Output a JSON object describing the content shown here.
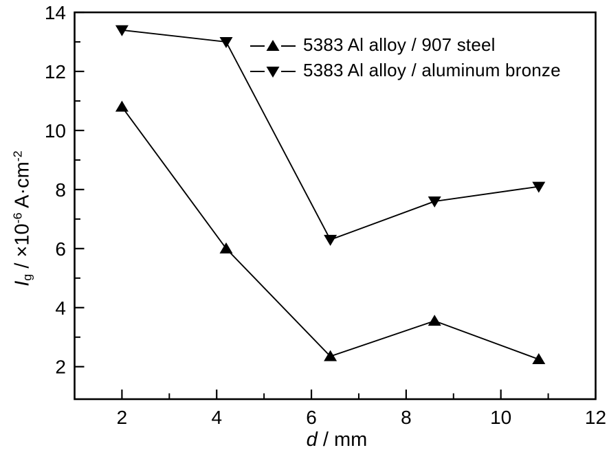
{
  "chart_data": {
    "type": "line",
    "x": [
      2,
      4.2,
      6.4,
      8.6,
      10.8
    ],
    "series": [
      {
        "name": "5383 Al alloy / 907 steel",
        "marker": "triangle-up",
        "values": [
          10.8,
          6.0,
          2.35,
          3.55,
          2.25
        ]
      },
      {
        "name": "5383 Al alloy / aluminum bronze",
        "marker": "triangle-down",
        "values": [
          13.4,
          13.0,
          6.3,
          7.6,
          8.1
        ]
      }
    ],
    "xlabel": "d / mm",
    "ylabel": "Ig / ×10-6 A·cm-2",
    "xlim": [
      1,
      12
    ],
    "ylim": [
      0.9,
      14
    ],
    "x_major_ticks": [
      2,
      4,
      6,
      8,
      10,
      12
    ],
    "x_minor_ticks": [
      3,
      5,
      7,
      9,
      11
    ],
    "y_major_ticks": [
      2,
      4,
      6,
      8,
      10,
      12,
      14
    ],
    "y_minor_ticks": [
      3,
      5,
      7,
      9,
      11,
      13
    ],
    "grid": false,
    "legend_position": "upper-right-inside",
    "line_color": "#000000",
    "background": "#ffffff"
  },
  "legend": {
    "items": [
      {
        "label": "5383 Al alloy / 907 steel",
        "marker": "triangle-up"
      },
      {
        "label": "5383 Al alloy / aluminum bronze",
        "marker": "triangle-down"
      }
    ]
  },
  "axes": {
    "x_label": {
      "italic": "d",
      "rest": " / mm"
    },
    "y_label": {
      "italic": "I",
      "sub": "g",
      "mid": " / ×10",
      "sup1": "-6",
      "mid2": " A·cm",
      "sup2": "-2"
    }
  }
}
